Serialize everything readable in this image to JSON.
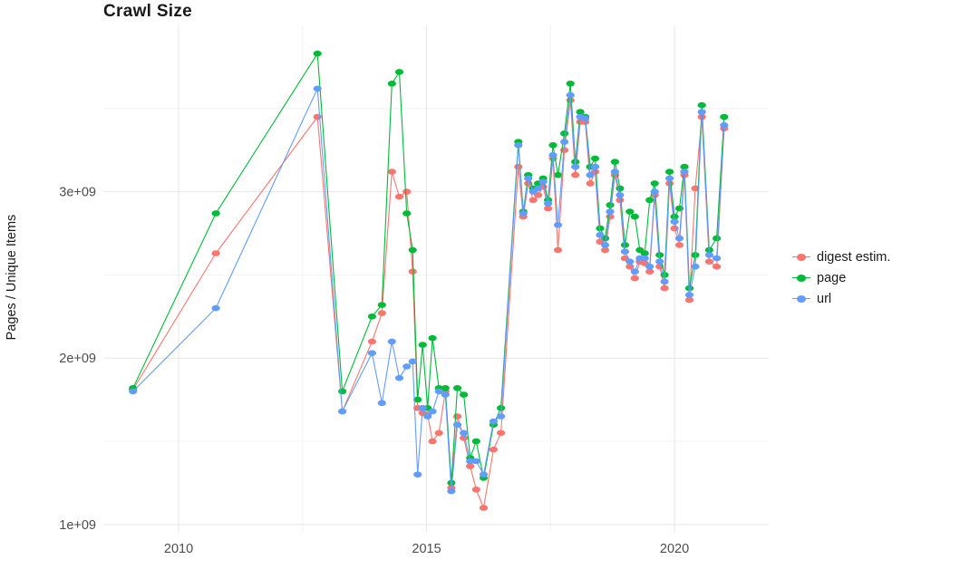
{
  "chart_data": {
    "type": "line",
    "title": "Crawl Size",
    "xlabel": "",
    "ylabel": "Pages / Unique Items",
    "legend_position": "right",
    "grid": {
      "x_minor": [
        2012.5,
        2017.5
      ],
      "y_minor": [
        1.5,
        2.5,
        3.5
      ]
    },
    "x_ticks": {
      "values": [
        2010,
        2015,
        2020
      ],
      "labels": [
        "2010",
        "2015",
        "2020"
      ]
    },
    "y_ticks": {
      "values": [
        1,
        2,
        3
      ],
      "labels": [
        "1e+09",
        "2e+09",
        "3e+09"
      ]
    },
    "xlim": [
      2008.5,
      2021.9
    ],
    "ylim": [
      0.95,
      4.0
    ],
    "units": "y values in billions (1e9) of pages / unique items; x in decimal years",
    "x": [
      2009.08,
      2010.75,
      2012.8,
      2013.3,
      2013.9,
      2014.1,
      2014.3,
      2014.45,
      2014.6,
      2014.72,
      2014.82,
      2014.92,
      2015.02,
      2015.12,
      2015.25,
      2015.38,
      2015.5,
      2015.62,
      2015.75,
      2015.88,
      2016.0,
      2016.15,
      2016.35,
      2016.5,
      2016.85,
      2016.95,
      2017.05,
      2017.15,
      2017.25,
      2017.35,
      2017.45,
      2017.55,
      2017.65,
      2017.78,
      2017.9,
      2018.0,
      2018.1,
      2018.2,
      2018.3,
      2018.4,
      2018.5,
      2018.6,
      2018.7,
      2018.8,
      2018.9,
      2019.0,
      2019.1,
      2019.2,
      2019.3,
      2019.4,
      2019.5,
      2019.6,
      2019.7,
      2019.8,
      2019.9,
      2020.0,
      2020.1,
      2020.2,
      2020.3,
      2020.42,
      2020.55,
      2020.7,
      2020.85,
      2021.0
    ],
    "series": [
      {
        "id": "digest",
        "name": "digest estim.",
        "color": "#F8766D",
        "values": [
          1.81,
          2.63,
          3.45,
          1.68,
          2.1,
          2.27,
          3.12,
          2.97,
          3.0,
          2.52,
          1.7,
          1.67,
          1.66,
          1.5,
          1.55,
          1.8,
          1.22,
          1.65,
          1.52,
          1.35,
          1.21,
          1.1,
          1.45,
          1.55,
          3.15,
          2.85,
          3.05,
          2.95,
          2.98,
          3.03,
          2.9,
          3.2,
          2.65,
          3.25,
          3.55,
          3.1,
          3.42,
          3.42,
          3.05,
          3.12,
          2.7,
          2.65,
          2.85,
          3.1,
          2.95,
          2.6,
          2.55,
          2.48,
          2.58,
          2.57,
          2.52,
          2.98,
          2.55,
          2.42,
          3.05,
          2.78,
          2.68,
          3.1,
          2.35,
          3.02,
          3.45,
          2.58,
          2.55,
          3.38
        ]
      },
      {
        "id": "page",
        "name": "page",
        "color": "#00BA38",
        "values": [
          1.82,
          2.87,
          3.83,
          1.8,
          2.25,
          2.32,
          3.65,
          3.72,
          2.87,
          2.65,
          1.75,
          2.08,
          1.7,
          2.12,
          1.82,
          1.82,
          1.25,
          1.82,
          1.78,
          1.4,
          1.5,
          1.28,
          1.6,
          1.7,
          3.3,
          2.88,
          3.1,
          3.02,
          3.05,
          3.08,
          2.95,
          3.28,
          3.1,
          3.35,
          3.65,
          3.18,
          3.48,
          3.45,
          3.15,
          3.2,
          2.78,
          2.72,
          2.92,
          3.18,
          3.02,
          2.68,
          2.88,
          2.85,
          2.65,
          2.63,
          2.95,
          3.05,
          2.62,
          2.5,
          3.12,
          2.85,
          2.9,
          3.15,
          2.42,
          2.62,
          3.52,
          2.65,
          2.72,
          3.45
        ]
      },
      {
        "id": "url",
        "name": "url",
        "color": "#619CFF",
        "values": [
          1.8,
          2.3,
          3.62,
          1.68,
          2.03,
          1.73,
          2.1,
          1.88,
          1.95,
          1.98,
          1.3,
          1.7,
          1.65,
          1.68,
          1.8,
          1.78,
          1.2,
          1.6,
          1.55,
          1.38,
          1.38,
          1.3,
          1.62,
          1.65,
          3.28,
          2.87,
          3.08,
          3.0,
          3.02,
          3.06,
          2.93,
          3.22,
          2.8,
          3.3,
          3.58,
          3.15,
          3.45,
          3.44,
          3.1,
          3.15,
          2.74,
          2.68,
          2.88,
          3.12,
          2.98,
          2.64,
          2.58,
          2.52,
          2.6,
          2.6,
          2.55,
          3.0,
          2.58,
          2.46,
          3.08,
          2.82,
          2.72,
          3.12,
          2.38,
          2.55,
          3.48,
          2.62,
          2.6,
          3.4
        ]
      }
    ],
    "style": {
      "background": "#ffffff",
      "grid_major_color": "#e6e6e6",
      "grid_minor_color": "#f3f3f3",
      "axis_text_color": "#4d4d4d",
      "title_color": "#1a1a1a"
    }
  }
}
